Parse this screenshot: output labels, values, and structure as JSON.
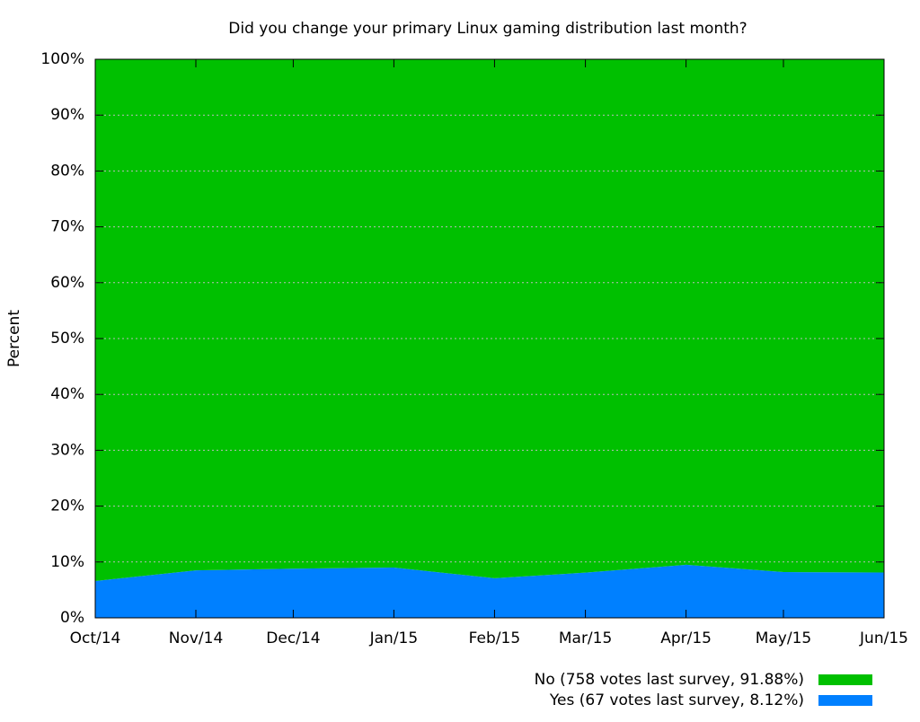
{
  "chart_data": {
    "type": "stacked_area",
    "title": "Did you change your primary Linux gaming distribution last month?",
    "y_label": "Percent",
    "x": [
      "2014-10",
      "2014-11",
      "2014-12",
      "2015-01",
      "2015-02",
      "2015-03",
      "2015-04",
      "2015-05",
      "2015-06"
    ],
    "xlim": [
      "2014-10",
      "2015-06"
    ],
    "xticks": [
      {
        "value": "2014-10",
        "label": "Oct/14"
      },
      {
        "value": "2014-11",
        "label": "Nov/14"
      },
      {
        "value": "2014-12",
        "label": "Dec/14"
      },
      {
        "value": "2015-01",
        "label": "Jan/15"
      },
      {
        "value": "2015-02",
        "label": "Feb/15"
      },
      {
        "value": "2015-03",
        "label": "Mar/15"
      },
      {
        "value": "2015-04",
        "label": "Apr/15"
      },
      {
        "value": "2015-05",
        "label": "May/15"
      },
      {
        "value": "2015-06",
        "label": "Jun/15"
      }
    ],
    "ylim": [
      0,
      100
    ],
    "yticks": [
      {
        "value": 0,
        "label": "0%"
      },
      {
        "value": 10,
        "label": "10%"
      },
      {
        "value": 20,
        "label": "20%"
      },
      {
        "value": 30,
        "label": "30%"
      },
      {
        "value": 40,
        "label": "40%"
      },
      {
        "value": 50,
        "label": "50%"
      },
      {
        "value": 60,
        "label": "60%"
      },
      {
        "value": 70,
        "label": "70%"
      },
      {
        "value": 80,
        "label": "80%"
      },
      {
        "value": 90,
        "label": "90%"
      },
      {
        "value": 100,
        "label": "100%"
      }
    ],
    "grid": true,
    "legend": "bottom-right",
    "series": [
      {
        "name": "Yes (67 votes last survey, 8.12%)",
        "color": "#0080ff",
        "values": [
          6.6,
          8.5,
          8.8,
          9.0,
          7.1,
          8.1,
          9.5,
          8.2,
          8.12
        ]
      },
      {
        "name": "No (758 votes last survey, 91.88%)",
        "color": "#00c000",
        "values": [
          93.4,
          91.5,
          91.2,
          91.0,
          92.9,
          91.9,
          90.5,
          91.8,
          91.88
        ]
      }
    ]
  }
}
